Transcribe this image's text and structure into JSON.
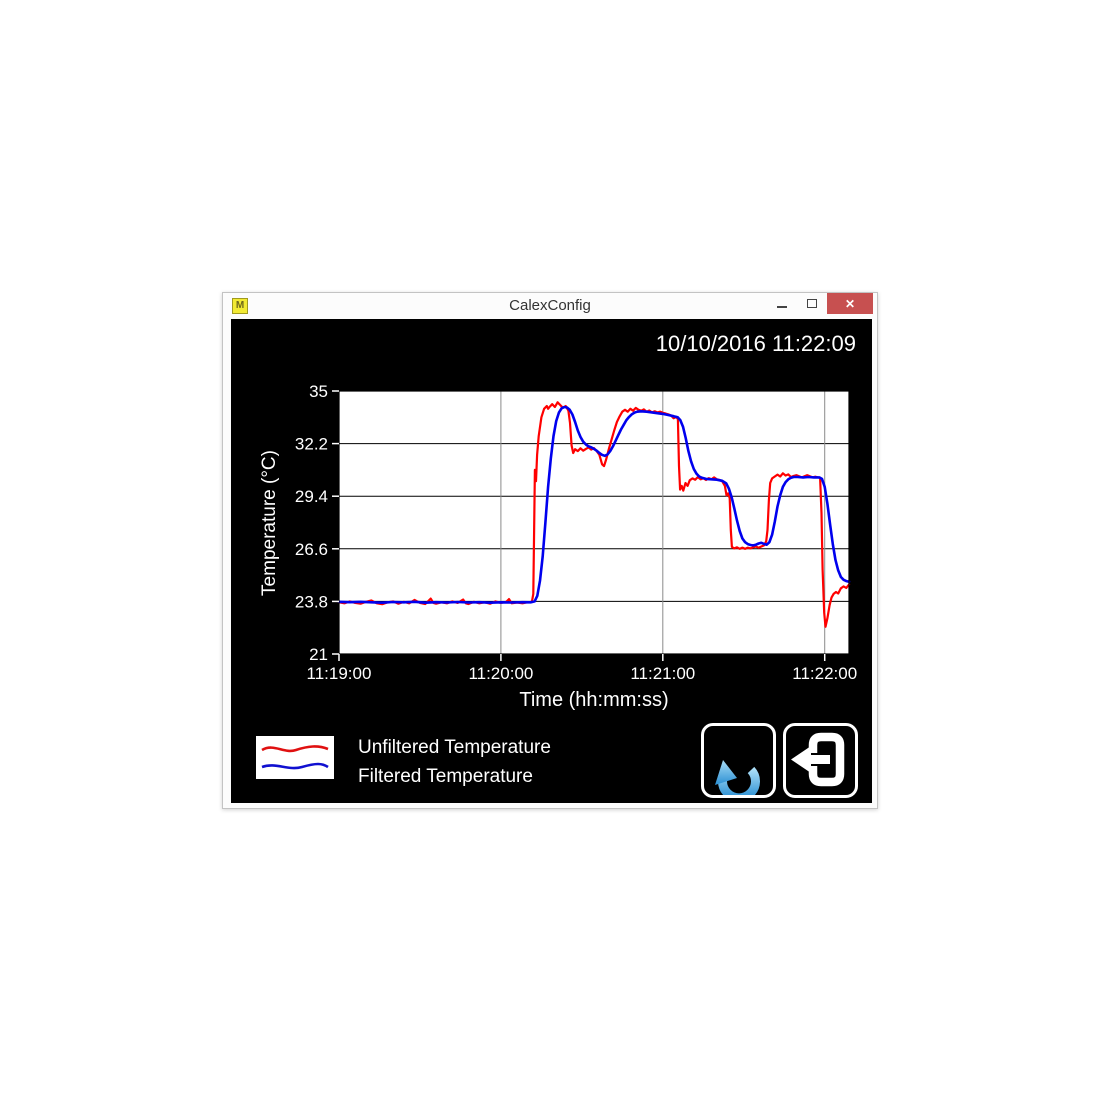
{
  "window": {
    "title": "CalexConfig",
    "app_icon_glyph": "M",
    "close_glyph": "✕",
    "close_color": "#c75050"
  },
  "header": {
    "timestamp": "10/10/2016 11:22:09"
  },
  "chart_data": {
    "type": "line",
    "xlabel": "Time (hh:mm:ss)",
    "ylabel": "Temperature (°C)",
    "x_axis_seconds_from": "11:19:00",
    "xlim": [
      0,
      189
    ],
    "ylim": [
      21,
      35
    ],
    "xticks": [
      {
        "t": 0,
        "label": "11:19:00"
      },
      {
        "t": 60,
        "label": "11:20:00"
      },
      {
        "t": 120,
        "label": "11:21:00"
      },
      {
        "t": 180,
        "label": "11:22:00"
      }
    ],
    "yticks": [
      {
        "v": 21,
        "label": "21"
      },
      {
        "v": 23.8,
        "label": "23.8"
      },
      {
        "v": 26.6,
        "label": "26.6"
      },
      {
        "v": 29.4,
        "label": "29.4"
      },
      {
        "v": 32.2,
        "label": "32.2"
      },
      {
        "v": 35,
        "label": "35"
      }
    ],
    "x_gridlines": [
      60,
      120,
      180
    ],
    "y_gridlines": [
      23.8,
      26.6,
      29.4,
      32.2
    ],
    "grid_color_horizontal": "#000000",
    "grid_color_vertical": "#8a8a8a",
    "plot_background": "#ffffff",
    "series": [
      {
        "name": "unfiltered",
        "label": "Unfiltered Temperature",
        "color": "#ff0000",
        "width": 2.2,
        "points": [
          [
            0,
            23.75
          ],
          [
            2,
            23.7
          ],
          [
            4,
            23.8
          ],
          [
            6,
            23.72
          ],
          [
            8,
            23.68
          ],
          [
            10,
            23.78
          ],
          [
            12,
            23.85
          ],
          [
            14,
            23.7
          ],
          [
            16,
            23.65
          ],
          [
            18,
            23.75
          ],
          [
            20,
            23.8
          ],
          [
            22,
            23.68
          ],
          [
            24,
            23.78
          ],
          [
            26,
            23.7
          ],
          [
            28,
            23.88
          ],
          [
            30,
            23.72
          ],
          [
            32,
            23.66
          ],
          [
            34,
            23.95
          ],
          [
            35,
            23.72
          ],
          [
            36,
            23.68
          ],
          [
            38,
            23.75
          ],
          [
            40,
            23.7
          ],
          [
            42,
            23.8
          ],
          [
            44,
            23.72
          ],
          [
            46,
            23.9
          ],
          [
            47,
            23.7
          ],
          [
            48,
            23.66
          ],
          [
            50,
            23.78
          ],
          [
            52,
            23.7
          ],
          [
            54,
            23.75
          ],
          [
            56,
            23.68
          ],
          [
            58,
            23.8
          ],
          [
            60,
            23.72
          ],
          [
            62,
            23.78
          ],
          [
            63,
            23.92
          ],
          [
            64,
            23.7
          ],
          [
            66,
            23.74
          ],
          [
            68,
            23.7
          ],
          [
            70,
            23.76
          ],
          [
            71.5,
            23.78
          ],
          [
            72,
            24.2
          ],
          [
            72.6,
            30.8
          ],
          [
            73,
            30.2
          ],
          [
            73.4,
            31.6
          ],
          [
            74,
            32.6
          ],
          [
            75,
            33.6
          ],
          [
            76,
            34.05
          ],
          [
            77,
            34.2
          ],
          [
            77.5,
            34.05
          ],
          [
            78,
            34.15
          ],
          [
            79,
            34.3
          ],
          [
            80,
            34.15
          ],
          [
            81,
            34.4
          ],
          [
            82,
            34.25
          ],
          [
            83,
            34.1
          ],
          [
            84,
            34.2
          ],
          [
            85,
            33.95
          ],
          [
            85.6,
            33.3
          ],
          [
            86.2,
            32.1
          ],
          [
            86.8,
            31.7
          ],
          [
            87.5,
            31.9
          ],
          [
            88.5,
            31.8
          ],
          [
            89.5,
            31.95
          ],
          [
            90.5,
            31.82
          ],
          [
            91.5,
            31.92
          ],
          [
            92.5,
            32.0
          ],
          [
            93.5,
            31.88
          ],
          [
            94.5,
            31.96
          ],
          [
            95.5,
            31.8
          ],
          [
            96.5,
            31.6
          ],
          [
            97.5,
            31.1
          ],
          [
            98.2,
            31.0
          ],
          [
            99,
            31.35
          ],
          [
            100,
            31.9
          ],
          [
            101,
            32.4
          ],
          [
            102,
            32.9
          ],
          [
            103,
            33.35
          ],
          [
            104,
            33.65
          ],
          [
            105,
            33.9
          ],
          [
            106,
            34.0
          ],
          [
            107,
            33.9
          ],
          [
            108,
            34.05
          ],
          [
            109,
            33.95
          ],
          [
            110,
            34.1
          ],
          [
            111,
            34.0
          ],
          [
            112,
            33.95
          ],
          [
            113,
            34.02
          ],
          [
            114,
            33.9
          ],
          [
            115,
            33.96
          ],
          [
            116,
            33.86
          ],
          [
            117,
            33.92
          ],
          [
            118,
            33.86
          ],
          [
            119,
            33.9
          ],
          [
            120,
            33.84
          ],
          [
            121,
            33.8
          ],
          [
            122,
            33.76
          ],
          [
            123,
            33.7
          ],
          [
            124,
            33.55
          ],
          [
            125,
            33.62
          ],
          [
            125.6,
            33.5
          ],
          [
            126,
            31.0
          ],
          [
            126.4,
            29.75
          ],
          [
            127,
            29.95
          ],
          [
            127.6,
            29.7
          ],
          [
            128.4,
            30.1
          ],
          [
            129.2,
            29.95
          ],
          [
            130,
            30.25
          ],
          [
            131,
            30.35
          ],
          [
            132,
            30.28
          ],
          [
            133,
            30.42
          ],
          [
            134,
            30.3
          ],
          [
            135,
            30.36
          ],
          [
            136,
            30.26
          ],
          [
            137,
            30.36
          ],
          [
            138,
            30.3
          ],
          [
            139,
            30.4
          ],
          [
            140,
            30.3
          ],
          [
            141,
            30.26
          ],
          [
            142,
            30.2
          ],
          [
            143,
            29.95
          ],
          [
            143.6,
            29.45
          ],
          [
            144.2,
            29.55
          ],
          [
            144.8,
            29.3
          ],
          [
            145.2,
            27.6
          ],
          [
            145.6,
            26.7
          ],
          [
            146.5,
            26.62
          ],
          [
            147.5,
            26.68
          ],
          [
            148.5,
            26.6
          ],
          [
            149.5,
            26.66
          ],
          [
            150.5,
            26.6
          ],
          [
            151.5,
            26.66
          ],
          [
            152.5,
            26.62
          ],
          [
            153.5,
            26.68
          ],
          [
            154.5,
            26.72
          ],
          [
            155.5,
            26.66
          ],
          [
            156.5,
            26.72
          ],
          [
            157.5,
            26.78
          ],
          [
            158.3,
            27.0
          ],
          [
            158.8,
            27.6
          ],
          [
            159.3,
            29.2
          ],
          [
            159.8,
            30.1
          ],
          [
            160.5,
            30.35
          ],
          [
            161.5,
            30.45
          ],
          [
            162.5,
            30.55
          ],
          [
            163.5,
            30.45
          ],
          [
            164.5,
            30.62
          ],
          [
            165.5,
            30.5
          ],
          [
            166.5,
            30.56
          ],
          [
            167.5,
            30.42
          ],
          [
            168.5,
            30.48
          ],
          [
            169.5,
            30.52
          ],
          [
            170.5,
            30.46
          ],
          [
            171.5,
            30.4
          ],
          [
            172.5,
            30.46
          ],
          [
            173.5,
            30.52
          ],
          [
            174.5,
            30.46
          ],
          [
            175.5,
            30.4
          ],
          [
            176.5,
            30.44
          ],
          [
            177.5,
            30.4
          ],
          [
            178.3,
            30.38
          ],
          [
            178.8,
            28.5
          ],
          [
            179.2,
            25.5
          ],
          [
            179.8,
            23.2
          ],
          [
            180.3,
            22.45
          ],
          [
            181,
            22.9
          ],
          [
            181.8,
            23.6
          ],
          [
            182.5,
            24.0
          ],
          [
            183.3,
            24.2
          ],
          [
            184.2,
            24.3
          ],
          [
            185,
            24.22
          ],
          [
            186,
            24.5
          ],
          [
            187,
            24.6
          ],
          [
            188,
            24.52
          ],
          [
            189,
            24.7
          ]
        ]
      },
      {
        "name": "filtered",
        "label": "Filtered Temperature",
        "color": "#0000ee",
        "width": 2.6,
        "points": [
          [
            0,
            23.78
          ],
          [
            4,
            23.76
          ],
          [
            8,
            23.78
          ],
          [
            12,
            23.75
          ],
          [
            16,
            23.73
          ],
          [
            20,
            23.77
          ],
          [
            24,
            23.75
          ],
          [
            28,
            23.78
          ],
          [
            32,
            23.73
          ],
          [
            36,
            23.76
          ],
          [
            40,
            23.74
          ],
          [
            44,
            23.77
          ],
          [
            48,
            23.74
          ],
          [
            52,
            23.76
          ],
          [
            56,
            23.73
          ],
          [
            60,
            23.75
          ],
          [
            64,
            23.74
          ],
          [
            68,
            23.76
          ],
          [
            71,
            23.75
          ],
          [
            72.5,
            23.8
          ],
          [
            73.5,
            24.1
          ],
          [
            74.5,
            24.9
          ],
          [
            75.5,
            26.2
          ],
          [
            76.5,
            28.0
          ],
          [
            77.5,
            29.9
          ],
          [
            78.5,
            31.4
          ],
          [
            79.5,
            32.6
          ],
          [
            80.5,
            33.4
          ],
          [
            81.5,
            33.85
          ],
          [
            82.5,
            34.08
          ],
          [
            83.5,
            34.15
          ],
          [
            84.5,
            34.12
          ],
          [
            85.5,
            34.0
          ],
          [
            86.5,
            33.75
          ],
          [
            87.5,
            33.35
          ],
          [
            88.5,
            32.9
          ],
          [
            89.5,
            32.55
          ],
          [
            90.5,
            32.3
          ],
          [
            91.5,
            32.15
          ],
          [
            92.5,
            32.05
          ],
          [
            93.5,
            32.0
          ],
          [
            94.5,
            31.92
          ],
          [
            95.5,
            31.82
          ],
          [
            96.5,
            31.7
          ],
          [
            97.5,
            31.6
          ],
          [
            98.5,
            31.55
          ],
          [
            99.5,
            31.62
          ],
          [
            100.5,
            31.8
          ],
          [
            101.5,
            32.05
          ],
          [
            102.5,
            32.35
          ],
          [
            103.5,
            32.65
          ],
          [
            104.5,
            32.95
          ],
          [
            105.5,
            33.2
          ],
          [
            106.5,
            33.45
          ],
          [
            107.5,
            33.62
          ],
          [
            108.5,
            33.76
          ],
          [
            109.5,
            33.85
          ],
          [
            110.5,
            33.9
          ],
          [
            112,
            33.92
          ],
          [
            114,
            33.9
          ],
          [
            116,
            33.86
          ],
          [
            118,
            33.82
          ],
          [
            120,
            33.78
          ],
          [
            122,
            33.72
          ],
          [
            124,
            33.66
          ],
          [
            125.5,
            33.6
          ],
          [
            126.5,
            33.45
          ],
          [
            127.5,
            33.1
          ],
          [
            128.5,
            32.5
          ],
          [
            129.5,
            31.8
          ],
          [
            130.5,
            31.25
          ],
          [
            131.5,
            30.85
          ],
          [
            132.5,
            30.6
          ],
          [
            133.5,
            30.45
          ],
          [
            134.5,
            30.38
          ],
          [
            136,
            30.32
          ],
          [
            138,
            30.3
          ],
          [
            140,
            30.28
          ],
          [
            142,
            30.22
          ],
          [
            143.5,
            30.08
          ],
          [
            144.5,
            29.8
          ],
          [
            145.5,
            29.35
          ],
          [
            146.5,
            28.75
          ],
          [
            147.5,
            28.1
          ],
          [
            148.5,
            27.55
          ],
          [
            149.5,
            27.15
          ],
          [
            150.5,
            26.95
          ],
          [
            151.5,
            26.85
          ],
          [
            152.5,
            26.8
          ],
          [
            153.5,
            26.78
          ],
          [
            154.5,
            26.82
          ],
          [
            155.5,
            26.88
          ],
          [
            156.5,
            26.92
          ],
          [
            157.5,
            26.86
          ],
          [
            158.5,
            26.82
          ],
          [
            159.5,
            26.95
          ],
          [
            160.5,
            27.35
          ],
          [
            161.5,
            28.05
          ],
          [
            162.5,
            28.85
          ],
          [
            163.5,
            29.45
          ],
          [
            164.5,
            29.9
          ],
          [
            165.5,
            30.15
          ],
          [
            166.5,
            30.3
          ],
          [
            167.5,
            30.38
          ],
          [
            168.5,
            30.42
          ],
          [
            170,
            30.42
          ],
          [
            172,
            30.4
          ],
          [
            174,
            30.42
          ],
          [
            176,
            30.4
          ],
          [
            178,
            30.4
          ],
          [
            179,
            30.32
          ],
          [
            180,
            29.9
          ],
          [
            181,
            29.0
          ],
          [
            182,
            27.9
          ],
          [
            183,
            26.85
          ],
          [
            184,
            26.0
          ],
          [
            185,
            25.45
          ],
          [
            186,
            25.1
          ],
          [
            187,
            24.95
          ],
          [
            188,
            24.88
          ],
          [
            189,
            24.85
          ]
        ]
      }
    ]
  },
  "buttons": {
    "refresh_icon": "circular-arrow-refresh",
    "exit_icon": "logout-arrow",
    "refresh_color": "#3ea0dd"
  }
}
